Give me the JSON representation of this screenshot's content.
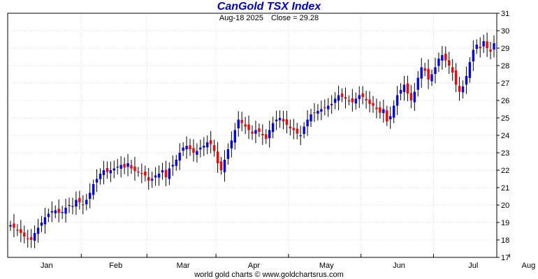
{
  "chart_data": {
    "type": "candlestick",
    "title": "CanGold TSX Index",
    "date_label": "Aug-18 2025",
    "close_label": "Close = 29.28",
    "credit": "world gold charts © www.goldchartsrus.com",
    "x_tick_labels": [
      "Jan",
      "Feb",
      "Mar",
      "Apr",
      "May",
      "Jun",
      "Jul",
      "Aug"
    ],
    "y_ticks": [
      17,
      18,
      19,
      20,
      21,
      22,
      23,
      24,
      25,
      26,
      27,
      28,
      29,
      30,
      31
    ],
    "ylim": [
      17,
      31
    ],
    "y_axis_position": "right",
    "grid": true,
    "up_color": "#0000ff",
    "down_color": "#ff0000",
    "wick_color": "#000000",
    "closes": [
      18.85,
      18.7,
      18.55,
      18.4,
      18.2,
      18.05,
      18.0,
      18.4,
      18.7,
      19.0,
      19.3,
      19.5,
      19.65,
      19.7,
      19.55,
      19.6,
      19.85,
      20.0,
      19.95,
      20.3,
      20.15,
      20.0,
      20.3,
      20.7,
      21.2,
      21.5,
      21.8,
      22.0,
      21.9,
      22.0,
      22.1,
      22.2,
      22.3,
      22.15,
      22.4,
      22.1,
      21.95,
      21.9,
      21.8,
      21.7,
      21.4,
      21.5,
      21.7,
      21.8,
      22.0,
      21.6,
      22.1,
      22.3,
      22.6,
      23.0,
      23.3,
      23.4,
      23.2,
      23.0,
      23.1,
      23.3,
      23.4,
      23.6,
      23.5,
      23.1,
      22.4,
      22.0,
      22.6,
      23.2,
      23.7,
      24.3,
      24.9,
      24.7,
      24.5,
      24.3,
      24.1,
      24.3,
      24.2,
      24.0,
      23.8,
      24.3,
      24.7,
      24.9,
      25.0,
      24.8,
      24.6,
      24.4,
      24.3,
      24.1,
      24.0,
      24.5,
      24.9,
      25.2,
      25.3,
      25.4,
      25.5,
      25.6,
      25.7,
      25.8,
      26.1,
      26.3,
      26.2,
      26.1,
      26.0,
      25.9,
      26.1,
      26.3,
      26.2,
      26.0,
      25.8,
      25.7,
      25.5,
      25.3,
      25.5,
      24.8,
      25.1,
      25.7,
      26.3,
      26.6,
      26.9,
      26.4,
      26.0,
      26.5,
      27.3,
      27.9,
      27.7,
      27.2,
      27.5,
      27.9,
      28.4,
      28.6,
      28.3,
      28.0,
      27.6,
      26.9,
      26.5,
      26.8,
      27.4,
      28.2,
      28.9,
      29.2,
      29.0,
      29.4,
      29.0,
      28.8,
      29.28
    ]
  }
}
